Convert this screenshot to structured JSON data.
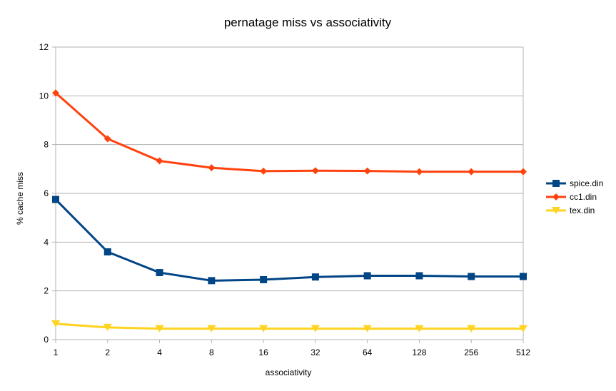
{
  "chart_data": {
    "type": "line",
    "title": "pernatage miss vs associativity",
    "xlabel": "associativity",
    "ylabel": "% cache miss",
    "categories": [
      "1",
      "2",
      "4",
      "8",
      "16",
      "32",
      "64",
      "128",
      "256",
      "512"
    ],
    "ylim": [
      0,
      12
    ],
    "yticks": [
      0,
      2,
      4,
      6,
      8,
      10,
      12
    ],
    "grid": "horizontal",
    "legend_position": "right",
    "series": [
      {
        "name": "spice.din",
        "color": "#004586",
        "marker": "square",
        "values": [
          5.75,
          3.6,
          2.75,
          2.42,
          2.46,
          2.57,
          2.62,
          2.62,
          2.59,
          2.59
        ]
      },
      {
        "name": "cc1.din",
        "color": "#ff420e",
        "marker": "diamond",
        "values": [
          10.12,
          8.24,
          7.33,
          7.05,
          6.91,
          6.93,
          6.92,
          6.89,
          6.89,
          6.89
        ]
      },
      {
        "name": "tex.din",
        "color": "#ffd320",
        "marker": "triangle-down",
        "values": [
          0.65,
          0.5,
          0.45,
          0.45,
          0.45,
          0.45,
          0.45,
          0.45,
          0.45,
          0.45
        ]
      }
    ]
  }
}
